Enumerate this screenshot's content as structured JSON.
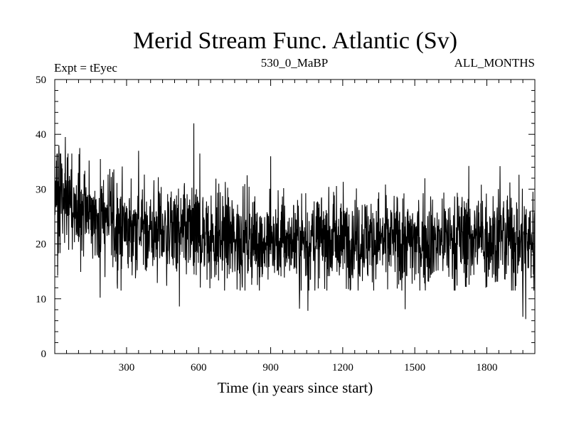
{
  "chart_data": {
    "type": "line",
    "title": "Merid Stream Func. Atlantic (Sv)",
    "experiment": "Expt = tEyec",
    "run_label": "530_0_MaBP",
    "period_label": "ALL_MONTHS",
    "xlabel": "Time (in years since start)",
    "ylabel": "",
    "xlim": [
      1,
      2000
    ],
    "ylim": [
      0,
      50
    ],
    "xticks": [
      300,
      600,
      900,
      1200,
      1500,
      1800
    ],
    "yticks": [
      0,
      10,
      20,
      30,
      40,
      50
    ],
    "series": [
      {
        "name": "Atlantic meridional stream function",
        "color": "#000000",
        "n_points": 2000,
        "anchors": [
          {
            "x": 1,
            "mean": 27,
            "amp": 5.5
          },
          {
            "x": 150,
            "mean": 25.5,
            "amp": 5
          },
          {
            "x": 300,
            "mean": 23,
            "amp": 4.5
          },
          {
            "x": 600,
            "mean": 21.5,
            "amp": 4.5
          },
          {
            "x": 900,
            "mean": 20.5,
            "amp": 4.5
          },
          {
            "x": 1200,
            "mean": 21,
            "amp": 4.5
          },
          {
            "x": 1500,
            "mean": 20.5,
            "amp": 4.5
          },
          {
            "x": 1800,
            "mean": 21.5,
            "amp": 4.8
          },
          {
            "x": 2000,
            "mean": 20.5,
            "amp": 5
          }
        ],
        "extremes": [
          {
            "x": 1,
            "y": 40
          },
          {
            "x": 18,
            "y": 38
          },
          {
            "x": 45,
            "y": 39.5
          },
          {
            "x": 105,
            "y": 37.5
          },
          {
            "x": 190,
            "y": 10.2
          },
          {
            "x": 350,
            "y": 37
          },
          {
            "x": 520,
            "y": 8.6
          },
          {
            "x": 580,
            "y": 42
          },
          {
            "x": 605,
            "y": 36.5
          },
          {
            "x": 900,
            "y": 36
          },
          {
            "x": 1020,
            "y": 8.2
          },
          {
            "x": 1055,
            "y": 7.8
          },
          {
            "x": 1460,
            "y": 8.1
          },
          {
            "x": 1855,
            "y": 34.2
          },
          {
            "x": 1950,
            "y": 6.7
          },
          {
            "x": 1962,
            "y": 6.3
          }
        ],
        "seed": 530
      }
    ]
  }
}
